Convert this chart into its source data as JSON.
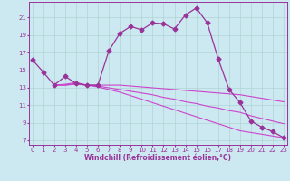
{
  "bg_color": "#cce8f0",
  "grid_color": "#b0d4d4",
  "line_color": "#993399",
  "line_color2": "#cc44cc",
  "xlabel": "Windchill (Refroidissement éolien,°C)",
  "xlabel_color": "#993399",
  "yticks": [
    7,
    9,
    11,
    13,
    15,
    17,
    19,
    21
  ],
  "xticks": [
    0,
    1,
    2,
    3,
    4,
    5,
    6,
    7,
    8,
    9,
    10,
    11,
    12,
    13,
    14,
    15,
    16,
    17,
    18,
    19,
    20,
    21,
    22,
    23
  ],
  "ylim": [
    6.5,
    22.8
  ],
  "xlim": [
    -0.3,
    23.3
  ],
  "series1": {
    "x": [
      0,
      1,
      2,
      3,
      4,
      5,
      6,
      7,
      8,
      9,
      10,
      11,
      12,
      13,
      14,
      15,
      16,
      17,
      18,
      19,
      20,
      21,
      22,
      23
    ],
    "y": [
      16.2,
      14.8,
      13.3,
      14.3,
      13.5,
      13.3,
      13.3,
      17.2,
      19.2,
      20.0,
      19.6,
      20.4,
      20.3,
      19.7,
      21.3,
      22.1,
      20.4,
      16.3,
      12.8,
      11.3,
      9.2,
      8.5,
      8.0,
      7.3
    ],
    "marker": "D",
    "markersize": 2.5
  },
  "series2": {
    "x": [
      2,
      3,
      4,
      5,
      6,
      7,
      8,
      9,
      10,
      11,
      12,
      13,
      14,
      15,
      16,
      17,
      18,
      19,
      20,
      21,
      22,
      23
    ],
    "y": [
      13.3,
      13.3,
      13.4,
      13.3,
      13.3,
      13.3,
      13.3,
      13.2,
      13.1,
      13.0,
      12.9,
      12.8,
      12.7,
      12.6,
      12.5,
      12.4,
      12.3,
      12.2,
      12.0,
      11.8,
      11.6,
      11.4
    ]
  },
  "series3": {
    "x": [
      2,
      3,
      4,
      5,
      6,
      7,
      8,
      9,
      10,
      11,
      12,
      13,
      14,
      15,
      16,
      17,
      18,
      19,
      20,
      21,
      22,
      23
    ],
    "y": [
      13.3,
      13.3,
      13.5,
      13.3,
      13.1,
      12.8,
      12.5,
      12.1,
      11.7,
      11.3,
      10.9,
      10.5,
      10.1,
      9.7,
      9.3,
      8.9,
      8.5,
      8.1,
      7.9,
      7.7,
      7.5,
      7.3
    ]
  },
  "series4": {
    "x": [
      2,
      3,
      4,
      5,
      6,
      7,
      8,
      9,
      10,
      11,
      12,
      13,
      14,
      15,
      16,
      17,
      18,
      19,
      20,
      21,
      22,
      23
    ],
    "y": [
      13.3,
      13.4,
      13.6,
      13.3,
      13.2,
      13.0,
      12.8,
      12.6,
      12.4,
      12.2,
      11.9,
      11.7,
      11.4,
      11.2,
      10.9,
      10.7,
      10.4,
      10.2,
      9.8,
      9.5,
      9.2,
      8.9
    ]
  }
}
